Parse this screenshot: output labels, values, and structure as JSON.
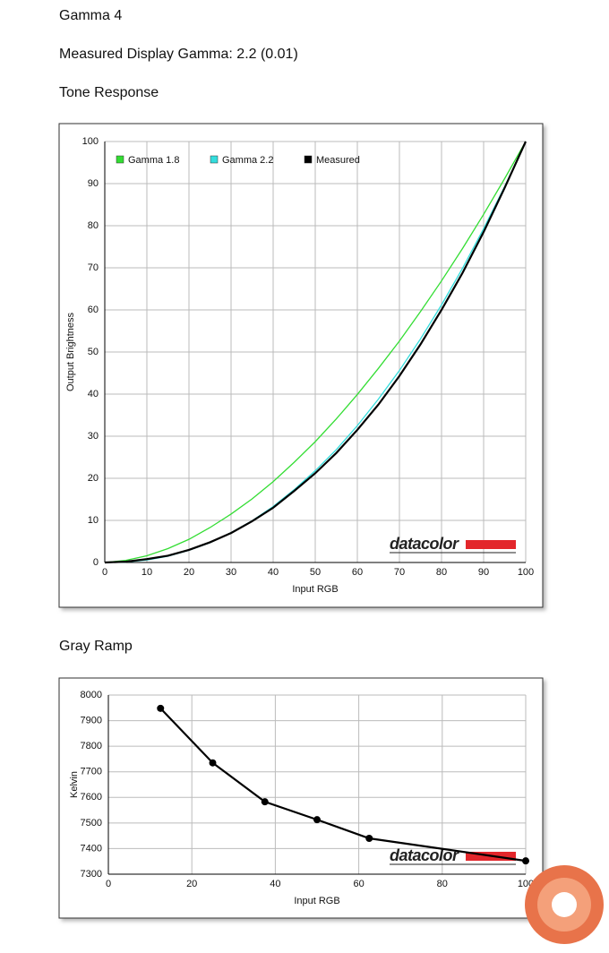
{
  "header": {
    "title": "Gamma 4",
    "subtitle": "Measured Display Gamma: 2.2 (0.01)"
  },
  "sections": [
    "Tone Response",
    "Gray Ramp"
  ],
  "chart_data": [
    {
      "type": "line",
      "xlabel": "Input RGB",
      "ylabel": "Output Brightness",
      "annotation": "datacolor",
      "x": [
        0,
        5,
        10,
        15,
        20,
        25,
        30,
        35,
        40,
        45,
        50,
        55,
        60,
        65,
        70,
        75,
        80,
        85,
        90,
        95,
        100
      ],
      "series": [
        {
          "name": "Gamma 1.8",
          "color": "#33dd33",
          "values": [
            0,
            0.5,
            1.6,
            3.3,
            5.5,
            8.3,
            11.5,
            15.1,
            19.2,
            23.8,
            28.7,
            34.1,
            39.9,
            46.1,
            52.6,
            59.6,
            66.9,
            74.6,
            82.7,
            91.2,
            100
          ]
        },
        {
          "name": "Gamma 2.2",
          "color": "#33dddd",
          "values": [
            0,
            0.1,
            0.6,
            1.5,
            2.9,
            4.7,
            7.1,
            9.9,
            13.3,
            17.3,
            21.8,
            26.8,
            32.5,
            38.8,
            45.6,
            53.1,
            61.2,
            69.9,
            79.3,
            89.3,
            100
          ]
        },
        {
          "name": "Measured",
          "color": "#000000",
          "values": [
            0,
            0.2,
            0.8,
            1.6,
            3.0,
            4.8,
            7.0,
            9.8,
            13.0,
            17.0,
            21.2,
            26.0,
            31.5,
            37.5,
            44.3,
            51.8,
            60.0,
            68.8,
            78.5,
            89.0,
            100
          ]
        }
      ],
      "xlim": [
        0,
        100
      ],
      "ylim": [
        0,
        100
      ],
      "xticks": [
        0,
        10,
        20,
        30,
        40,
        50,
        60,
        70,
        80,
        90,
        100
      ],
      "yticks": [
        0,
        10,
        20,
        30,
        40,
        50,
        60,
        70,
        80,
        90,
        100
      ],
      "grid": true,
      "legend": "upper left"
    },
    {
      "type": "line",
      "xlabel": "Input RGB",
      "ylabel": "Kelvin",
      "annotation": "datacolor",
      "markers": true,
      "x": [
        12.5,
        25,
        37.5,
        50,
        62.5,
        100
      ],
      "series": [
        {
          "color": "#000000",
          "values": [
            7948,
            7735,
            7583,
            7513,
            7440,
            7352
          ]
        }
      ],
      "xlim": [
        0,
        100
      ],
      "ylim": [
        7300,
        8000
      ],
      "xticks": [
        0,
        20,
        40,
        60,
        80,
        100
      ],
      "yticks": [
        7300,
        7400,
        7500,
        7600,
        7700,
        7800,
        7900,
        8000
      ],
      "grid": true
    }
  ]
}
